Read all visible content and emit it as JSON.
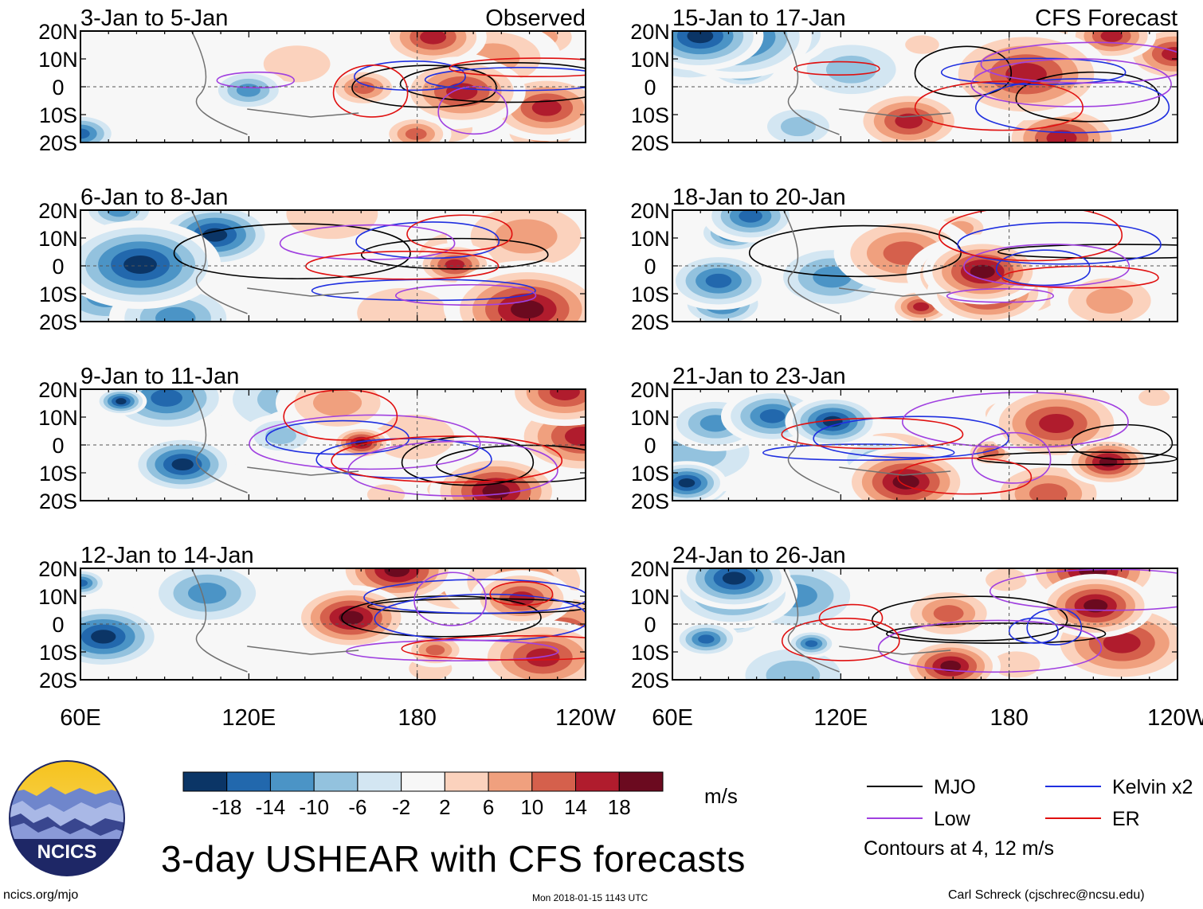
{
  "chart_data": {
    "type": "heatmap",
    "title": "3-day USHEAR with CFS forecasts",
    "variable": "USHEAR",
    "units": "m/s",
    "x_tick_labels": [
      "60E",
      "120E",
      "180",
      "120W"
    ],
    "x_range": [
      "60E",
      "120W"
    ],
    "y_tick_labels": [
      "20N",
      "10N",
      "0",
      "10S",
      "20S"
    ],
    "y_range": [
      "20S",
      "20N"
    ],
    "colorbar": {
      "levels": [
        "-18",
        "-14",
        "-10",
        "-6",
        "-2",
        "2",
        "6",
        "10",
        "14",
        "18"
      ],
      "colors": [
        "#0b3566",
        "#2268ad",
        "#4b94c6",
        "#93c2de",
        "#d3e6f2",
        "#f7f7f7",
        "#fbd2bd",
        "#f0a07e",
        "#d5604c",
        "#b01c2d",
        "#6b0a1f"
      ]
    },
    "panels": [
      {
        "period": "3-Jan to 5-Jan",
        "label": "Observed",
        "kind": "observed"
      },
      {
        "period": "6-Jan to 8-Jan",
        "label": "",
        "kind": "observed"
      },
      {
        "period": "9-Jan to 11-Jan",
        "label": "",
        "kind": "observed"
      },
      {
        "period": "12-Jan to 14-Jan",
        "label": "",
        "kind": "observed"
      },
      {
        "period": "15-Jan to 17-Jan",
        "label": "CFS Forecast",
        "kind": "forecast"
      },
      {
        "period": "18-Jan to 20-Jan",
        "label": "",
        "kind": "forecast"
      },
      {
        "period": "21-Jan to 23-Jan",
        "label": "",
        "kind": "forecast"
      },
      {
        "period": "24-Jan to 26-Jan",
        "label": "",
        "kind": "forecast"
      }
    ],
    "legend": [
      {
        "name": "MJO",
        "color": "#000000"
      },
      {
        "name": "Kelvin x2",
        "color": "#1f2fe0"
      },
      {
        "name": "Low",
        "color": "#a040e0"
      },
      {
        "name": "ER",
        "color": "#e01010"
      }
    ],
    "contour_note": "Contours at 4, 12 m/s"
  },
  "footer": {
    "logo_text": "NCICS",
    "url": "ncics.org/mjo",
    "timestamp": "Mon 2018-01-15 1143 UTC",
    "credit": "Carl Schreck (cjschrec@ncsu.edu)"
  }
}
